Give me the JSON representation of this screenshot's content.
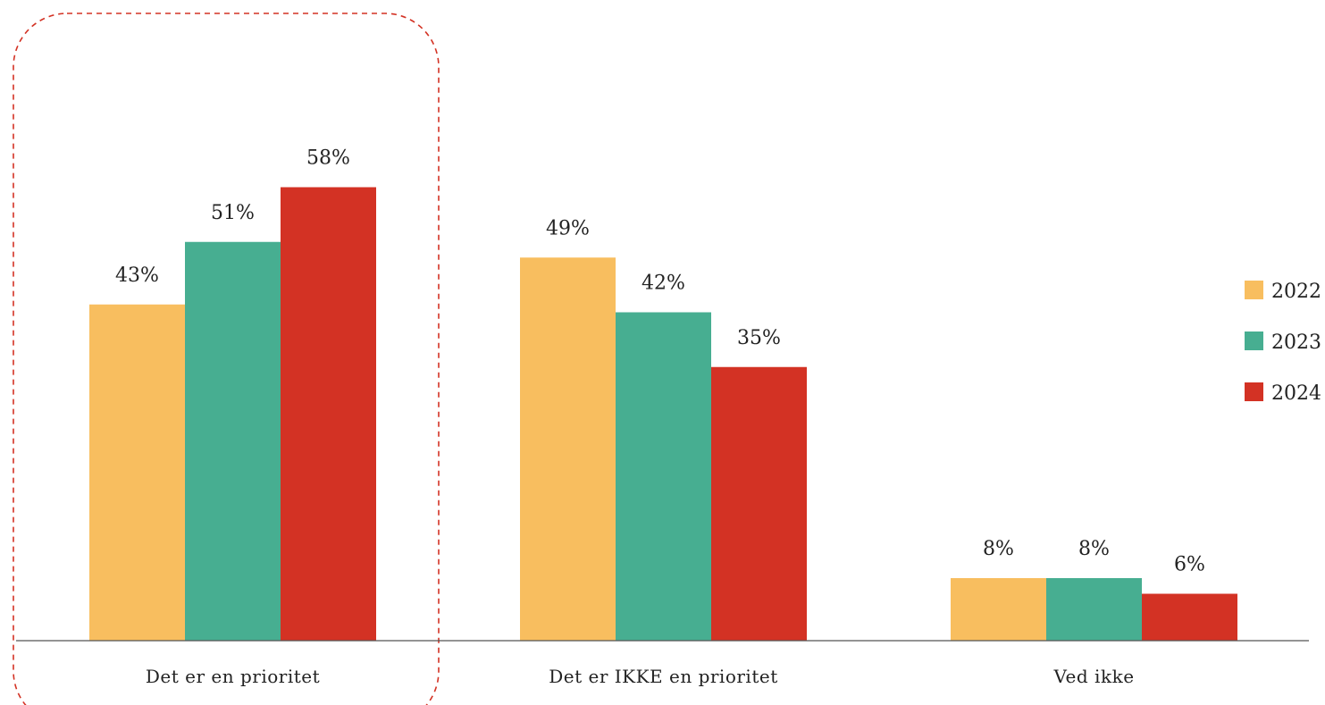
{
  "chart_data": {
    "type": "bar",
    "categories": [
      "Det er en prioritet",
      "Det er IKKE en prioritet",
      "Ved ikke"
    ],
    "series": [
      {
        "name": "2022",
        "color": "#F8BE5F",
        "values": [
          43,
          49,
          8
        ],
        "labels": [
          "43%",
          "49%",
          "8%"
        ]
      },
      {
        "name": "2023",
        "color": "#47AE91",
        "values": [
          51,
          42,
          8
        ],
        "labels": [
          "51%",
          "42%",
          "8%"
        ]
      },
      {
        "name": "2024",
        "color": "#D33224",
        "values": [
          58,
          35,
          6
        ],
        "labels": [
          "58%",
          "35%",
          "6%"
        ]
      }
    ],
    "value_suffix": "%",
    "ylim": [
      0,
      66.5
    ],
    "grid": false,
    "legend_position": "right",
    "highlight": {
      "category": "Det er en prioritet",
      "style": "dashed rounded box",
      "color": "#D33224"
    }
  }
}
